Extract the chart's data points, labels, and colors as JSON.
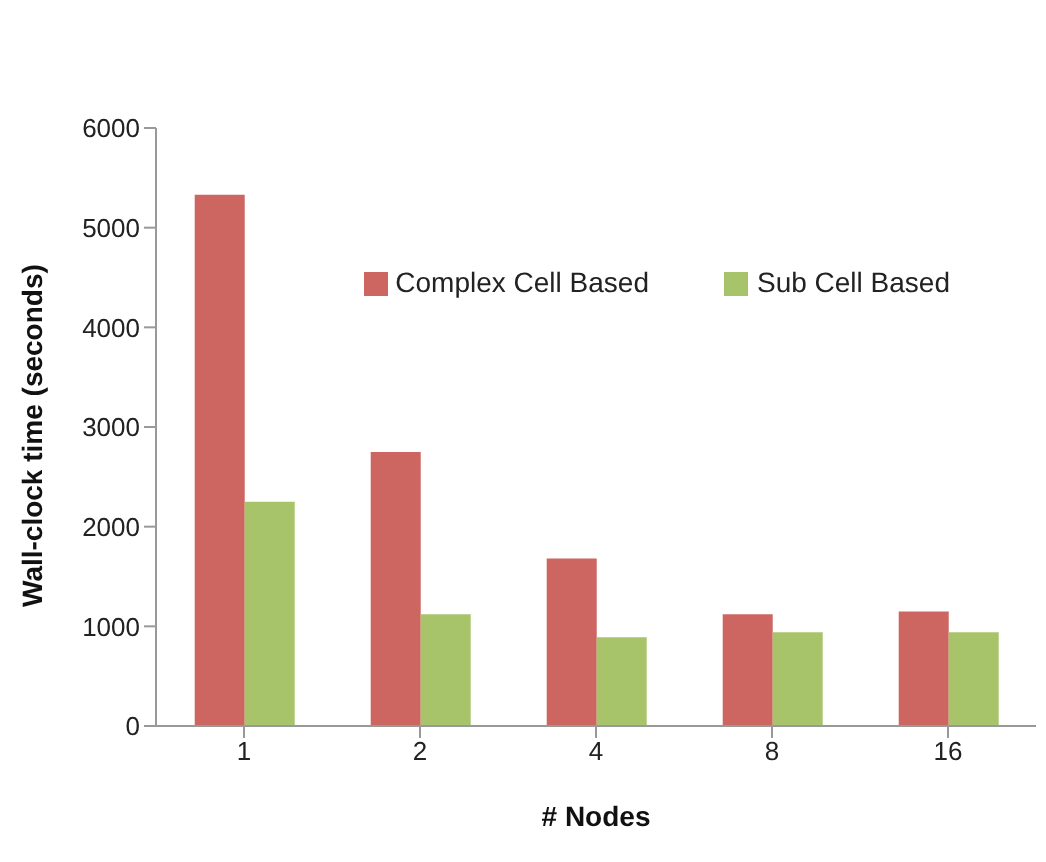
{
  "chart_data": {
    "type": "bar",
    "xlabel": "# Nodes",
    "ylabel": "Wall-clock time (seconds)",
    "categories": [
      "1",
      "2",
      "4",
      "8",
      "16"
    ],
    "series": [
      {
        "name": "Complex Cell Based",
        "color": "#cd6660",
        "values": [
          5330,
          2750,
          1680,
          1120,
          1150
        ]
      },
      {
        "name": "Sub Cell Based",
        "color": "#a8c46a",
        "values": [
          2250,
          1120,
          890,
          940,
          940
        ]
      }
    ],
    "ylim": [
      0,
      6000
    ],
    "yticks": [
      0,
      1000,
      2000,
      3000,
      4000,
      5000,
      6000
    ],
    "grid": false,
    "legend": "top right"
  }
}
